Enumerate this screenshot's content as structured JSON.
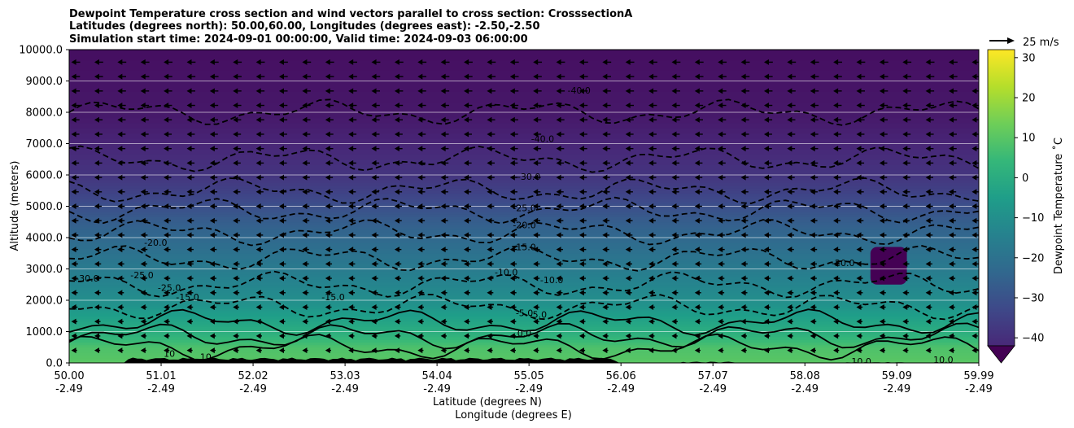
{
  "chart_data": {
    "type": "heatmap",
    "title_lines": [
      "Dewpoint Temperature cross section and wind vectors parallel to cross section: CrosssectionA",
      "Latitudes (degrees north): 50.00,60.00, Longitudes (degrees east): -2.50,-2.50",
      "Simulation start time: 2024-09-01 00:00:00, Valid time: 2024-09-03 06:00:00"
    ],
    "ylabel": "Altitude (meters)",
    "xlabel_lines": [
      "Latitude (degrees N)",
      "Longitude (degrees E)"
    ],
    "ylim": [
      0,
      10000
    ],
    "y_ticks": [
      0,
      1000,
      2000,
      3000,
      4000,
      5000,
      6000,
      7000,
      8000,
      9000,
      10000
    ],
    "y_tick_labels": [
      "0.0",
      "1000.0",
      "2000.0",
      "3000.0",
      "4000.0",
      "5000.0",
      "6000.0",
      "7000.0",
      "8000.0",
      "9000.0",
      "10000.0"
    ],
    "x_ticks": [
      {
        "lat": "50.00",
        "lon": "-2.49"
      },
      {
        "lat": "51.01",
        "lon": "-2.49"
      },
      {
        "lat": "52.02",
        "lon": "-2.49"
      },
      {
        "lat": "53.03",
        "lon": "-2.49"
      },
      {
        "lat": "54.04",
        "lon": "-2.49"
      },
      {
        "lat": "55.05",
        "lon": "-2.49"
      },
      {
        "lat": "56.06",
        "lon": "-2.49"
      },
      {
        "lat": "57.07",
        "lon": "-2.49"
      },
      {
        "lat": "58.08",
        "lon": "-2.49"
      },
      {
        "lat": "59.09",
        "lon": "-2.49"
      },
      {
        "lat": "59.99",
        "lon": "-2.49"
      }
    ],
    "grid": "horizontal",
    "colorbar": {
      "label": "Dewpoint Temperature ˚C",
      "vmin": -45,
      "vmax": 32,
      "ticks": [
        -40,
        -30,
        -20,
        -10,
        0,
        10,
        20,
        30
      ],
      "tick_labels": [
        "−40",
        "−30",
        "−20",
        "−10",
        "0",
        "10",
        "20",
        "30"
      ],
      "extend": "min",
      "colormap": "viridis"
    },
    "quiver_key": {
      "label": "25 m/s",
      "speed": 25
    },
    "wind_direction": "negative (toward lower latitude) at nearly all levels",
    "dewpoint_profile": [
      {
        "altitude": 0,
        "dewpoint": 12
      },
      {
        "altitude": 500,
        "dewpoint": 10
      },
      {
        "altitude": 1000,
        "dewpoint": 3
      },
      {
        "altitude": 1500,
        "dewpoint": -2
      },
      {
        "altitude": 2000,
        "dewpoint": -7
      },
      {
        "altitude": 2500,
        "dewpoint": -10
      },
      {
        "altitude": 3000,
        "dewpoint": -13
      },
      {
        "altitude": 3500,
        "dewpoint": -16
      },
      {
        "altitude": 4000,
        "dewpoint": -19
      },
      {
        "altitude": 4500,
        "dewpoint": -22
      },
      {
        "altitude": 5000,
        "dewpoint": -26
      },
      {
        "altitude": 5500,
        "dewpoint": -30
      },
      {
        "altitude": 6000,
        "dewpoint": -33
      },
      {
        "altitude": 7000,
        "dewpoint": -37
      },
      {
        "altitude": 8000,
        "dewpoint": -40
      },
      {
        "altitude": 10000,
        "dewpoint": -42
      }
    ],
    "dry_pocket": {
      "lat_range": [
        58.8,
        59.2
      ],
      "altitude_range": [
        2500,
        3700
      ]
    },
    "contour_labels": [
      {
        "text": "-40.0",
        "lat": 55.2,
        "alt": 7150
      },
      {
        "text": "-40.0",
        "lat": 55.6,
        "alt": 8700
      },
      {
        "text": "-30.0",
        "lat": 55.05,
        "alt": 5950
      },
      {
        "text": "-25.0",
        "lat": 55.0,
        "alt": 4950
      },
      {
        "text": "-20.0",
        "lat": 55.0,
        "alt": 4400
      },
      {
        "text": "-15.0",
        "lat": 55.0,
        "alt": 3700
      },
      {
        "text": "-10.0",
        "lat": 54.8,
        "alt": 2900
      },
      {
        "text": "-10.0",
        "lat": 55.3,
        "alt": 2650
      },
      {
        "text": "-5.0",
        "lat": 55.0,
        "alt": 1600
      },
      {
        "text": "-5.0",
        "lat": 55.15,
        "alt": 1550
      },
      {
        "text": "0.0",
        "lat": 55.0,
        "alt": 950
      },
      {
        "text": "-20.0",
        "lat": 50.95,
        "alt": 3850
      },
      {
        "text": "-25.0",
        "lat": 50.8,
        "alt": 2800
      },
      {
        "text": "-30.0",
        "lat": 50.2,
        "alt": 2700
      },
      {
        "text": "-25.0",
        "lat": 51.1,
        "alt": 2400
      },
      {
        "text": "-15.0",
        "lat": 51.3,
        "alt": 2100
      },
      {
        "text": "-15.0",
        "lat": 52.9,
        "alt": 2100
      },
      {
        "text": "10",
        "lat": 51.1,
        "alt": 300
      },
      {
        "text": "10",
        "lat": 51.5,
        "alt": 200
      },
      {
        "text": "-20.0",
        "lat": 58.5,
        "alt": 3200
      },
      {
        "text": "10.0",
        "lat": 58.7,
        "alt": 50
      },
      {
        "text": "10.0",
        "lat": 59.6,
        "alt": 100
      }
    ]
  }
}
